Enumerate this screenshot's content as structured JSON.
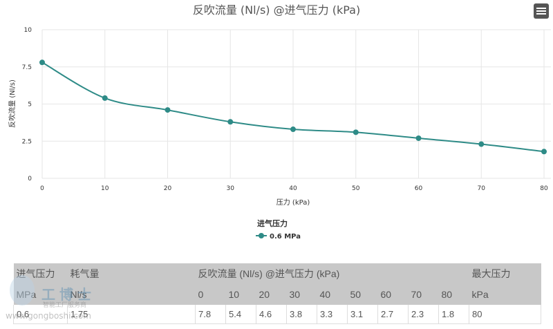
{
  "chart_data": {
    "type": "line",
    "title": "反吹流量 (Nl/s) @进气压力 (kPa)",
    "xlabel": "压力 (kPa)",
    "ylabel": "反吹流量 (Nl/s)",
    "x": [
      0,
      10,
      20,
      30,
      40,
      50,
      60,
      70,
      80
    ],
    "xlim": [
      0,
      80
    ],
    "ylim": [
      0,
      10
    ],
    "xticks": [
      "0",
      "10",
      "20",
      "30",
      "40",
      "50",
      "60",
      "70",
      "80"
    ],
    "yticks": [
      "0",
      "2.5",
      "5",
      "7.5",
      "10"
    ],
    "grid": true,
    "legend_title": "进气压力",
    "legend_position": "bottom",
    "series": [
      {
        "name": "0.6 MPa",
        "color": "#2e8b87",
        "values": [
          7.8,
          5.4,
          4.6,
          3.8,
          3.3,
          3.1,
          2.7,
          2.3,
          1.8
        ]
      }
    ]
  },
  "menu_icon": "hamburger-icon",
  "table": {
    "header1": [
      "进气压力",
      "耗气量",
      "反吹流量 (Nl/s) @进气压力 (kPa)",
      "最大压力"
    ],
    "header2": [
      "MPa",
      "Nl/s",
      "0",
      "10",
      "20",
      "30",
      "40",
      "50",
      "60",
      "70",
      "80",
      "kPa"
    ],
    "row": [
      "0.6",
      "1.75",
      "7.8",
      "5.4",
      "4.6",
      "3.8",
      "3.3",
      "3.1",
      "2.7",
      "2.3",
      "1.8",
      "80"
    ]
  },
  "watermark": {
    "brand": "工博士",
    "tagline": "智能工厂服务商",
    "url": "www.gongboshi.com"
  }
}
